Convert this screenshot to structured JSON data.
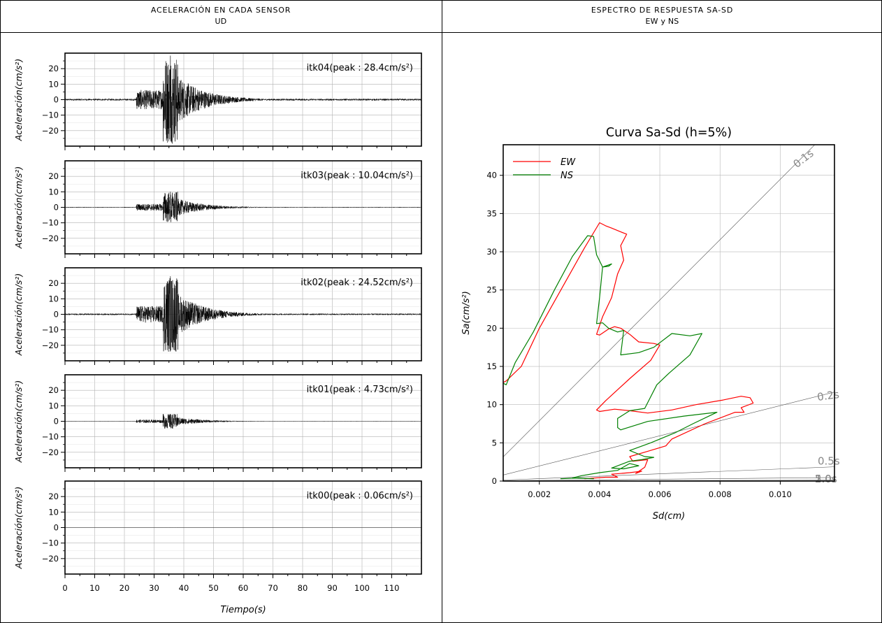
{
  "left_panel": {
    "title": "ACELERACIÓN EN CADA SENSOR",
    "subtitle": "UD"
  },
  "right_panel": {
    "title": "ESPECTRO DE RESPUESTA SA-SD",
    "subtitle": "EW y NS"
  },
  "chart_data": [
    {
      "type": "line",
      "title": "",
      "xlabel": "Tiempo(s)",
      "ylabel": "Aceleración(cm/s²)",
      "xlim": [
        0,
        120
      ],
      "ylim": [
        -30,
        30
      ],
      "xticks": [
        "0",
        "10",
        "20",
        "30",
        "40",
        "50",
        "60",
        "70",
        "80",
        "90",
        "100",
        "110"
      ],
      "yticks": [
        "20",
        "10",
        "0",
        "−10",
        "−20"
      ],
      "grid": true,
      "series": [
        {
          "name": "itk04",
          "peak_label": "itk04(peak : 28.4cm/s²)",
          "peak": 28.4,
          "onset": 24,
          "end": 80
        },
        {
          "name": "itk03",
          "peak_label": "itk03(peak : 10.04cm/s²)",
          "peak": 10.04,
          "onset": 24,
          "end": 75
        },
        {
          "name": "itk02",
          "peak_label": "itk02(peak : 24.52cm/s²)",
          "peak": 24.52,
          "onset": 24,
          "end": 90
        },
        {
          "name": "itk01",
          "peak_label": "itk01(peak : 4.73cm/s²)",
          "peak": 4.73,
          "onset": 24,
          "end": 75
        },
        {
          "name": "itk00",
          "peak_label": "itk00(peak : 0.06cm/s²)",
          "peak": 0.06,
          "onset": 24,
          "end": 70
        }
      ]
    },
    {
      "type": "line",
      "title": "Curva Sa-Sd (h=5%)",
      "xlabel": "Sd(cm)",
      "ylabel": "Sa(cm/s²)",
      "xlim": [
        0.0008,
        0.0118
      ],
      "ylim": [
        0,
        44
      ],
      "xticks": [
        "0.002",
        "0.004",
        "0.006",
        "0.008",
        "0.010"
      ],
      "yticks": [
        "0",
        "5",
        "10",
        "15",
        "20",
        "25",
        "30",
        "35",
        "40"
      ],
      "grid": true,
      "legend": "top-left",
      "period_lines": [
        {
          "label": "0.1s",
          "period": 0.1
        },
        {
          "label": "0.2s",
          "period": 0.2
        },
        {
          "label": "0.5s",
          "period": 0.5
        },
        {
          "label": "1.0s",
          "period": 1.0
        },
        {
          "label": "2.0s",
          "period": 2.0
        },
        {
          "label": "5.0s",
          "period": 5.0
        }
      ],
      "series": [
        {
          "name": "EW",
          "color": "#ff0000",
          "points": [
            [
              0.0035,
              0.3
            ],
            [
              0.0042,
              0.5
            ],
            [
              0.0046,
              0.5
            ],
            [
              0.0044,
              0.9
            ],
            [
              0.005,
              1.1
            ],
            [
              0.0054,
              1.3
            ],
            [
              0.0052,
              1.0
            ],
            [
              0.0055,
              1.8
            ],
            [
              0.0056,
              2.8
            ],
            [
              0.0051,
              2.6
            ],
            [
              0.005,
              3.2
            ],
            [
              0.0056,
              3.9
            ],
            [
              0.0062,
              4.6
            ],
            [
              0.0064,
              5.5
            ],
            [
              0.0075,
              7.5
            ],
            [
              0.0085,
              9.0
            ],
            [
              0.0088,
              9.0
            ],
            [
              0.0087,
              9.6
            ],
            [
              0.0091,
              10.2
            ],
            [
              0.009,
              10.9
            ],
            [
              0.0087,
              11.1
            ],
            [
              0.0081,
              10.6
            ],
            [
              0.0072,
              10.0
            ],
            [
              0.0064,
              9.3
            ],
            [
              0.0056,
              8.9
            ],
            [
              0.005,
              9.2
            ],
            [
              0.0045,
              9.4
            ],
            [
              0.004,
              9.1
            ],
            [
              0.0039,
              9.3
            ],
            [
              0.0042,
              10.5
            ],
            [
              0.005,
              13.4
            ],
            [
              0.0057,
              15.8
            ],
            [
              0.006,
              17.8
            ],
            [
              0.0058,
              18.0
            ],
            [
              0.0053,
              18.2
            ],
            [
              0.005,
              19.2
            ],
            [
              0.0047,
              20.0
            ],
            [
              0.0045,
              20.2
            ],
            [
              0.0043,
              19.9
            ],
            [
              0.004,
              19.1
            ],
            [
              0.0039,
              19.2
            ],
            [
              0.0041,
              21.5
            ],
            [
              0.0044,
              24.0
            ],
            [
              0.0046,
              27.1
            ],
            [
              0.0048,
              28.9
            ],
            [
              0.0047,
              30.8
            ],
            [
              0.0049,
              32.3
            ],
            [
              0.0047,
              32.6
            ],
            [
              0.0044,
              33.1
            ],
            [
              0.0042,
              33.4
            ],
            [
              0.004,
              33.8
            ],
            [
              0.0035,
              30.5
            ],
            [
              0.003,
              27.0
            ],
            [
              0.0025,
              23.5
            ],
            [
              0.002,
              20.0
            ],
            [
              0.0014,
              15.0
            ],
            [
              0.0009,
              13.1
            ],
            [
              0.0008,
              12.9
            ]
          ]
        },
        {
          "name": "NS",
          "color": "#008000",
          "points": [
            [
              0.0027,
              0.3
            ],
            [
              0.0033,
              0.4
            ],
            [
              0.0038,
              0.3
            ],
            [
              0.0031,
              0.4
            ],
            [
              0.0034,
              0.7
            ],
            [
              0.004,
              1.1
            ],
            [
              0.0046,
              1.4
            ],
            [
              0.005,
              2.3
            ],
            [
              0.0053,
              2.0
            ],
            [
              0.0048,
              1.6
            ],
            [
              0.0044,
              1.7
            ],
            [
              0.005,
              2.6
            ],
            [
              0.0054,
              2.8
            ],
            [
              0.0058,
              3.1
            ],
            [
              0.0055,
              3.2
            ],
            [
              0.005,
              4.0
            ],
            [
              0.0057,
              5.0
            ],
            [
              0.0065,
              6.3
            ],
            [
              0.0071,
              7.5
            ],
            [
              0.0079,
              9.0
            ],
            [
              0.0068,
              8.5
            ],
            [
              0.0056,
              7.8
            ],
            [
              0.0047,
              6.7
            ],
            [
              0.0046,
              7.0
            ],
            [
              0.0046,
              8.2
            ],
            [
              0.005,
              9.2
            ],
            [
              0.0055,
              9.5
            ],
            [
              0.0059,
              12.6
            ],
            [
              0.0063,
              14.1
            ],
            [
              0.007,
              16.5
            ],
            [
              0.0074,
              19.3
            ],
            [
              0.007,
              19.0
            ],
            [
              0.0064,
              19.3
            ],
            [
              0.0058,
              17.5
            ],
            [
              0.0053,
              16.8
            ],
            [
              0.0047,
              16.5
            ],
            [
              0.0048,
              19.7
            ],
            [
              0.0046,
              19.5
            ],
            [
              0.0043,
              20.0
            ],
            [
              0.0041,
              20.7
            ],
            [
              0.0039,
              20.6
            ],
            [
              0.004,
              24.0
            ],
            [
              0.0041,
              28.0
            ],
            [
              0.0044,
              28.4
            ],
            [
              0.0043,
              28.1
            ],
            [
              0.0041,
              28.0
            ],
            [
              0.0039,
              29.6
            ],
            [
              0.0038,
              32.0
            ],
            [
              0.0036,
              32.1
            ],
            [
              0.0031,
              29.4
            ],
            [
              0.0025,
              25.0
            ],
            [
              0.0018,
              19.5
            ],
            [
              0.0012,
              15.5
            ],
            [
              0.0009,
              12.6
            ],
            [
              0.0008,
              12.8
            ]
          ]
        }
      ]
    }
  ]
}
